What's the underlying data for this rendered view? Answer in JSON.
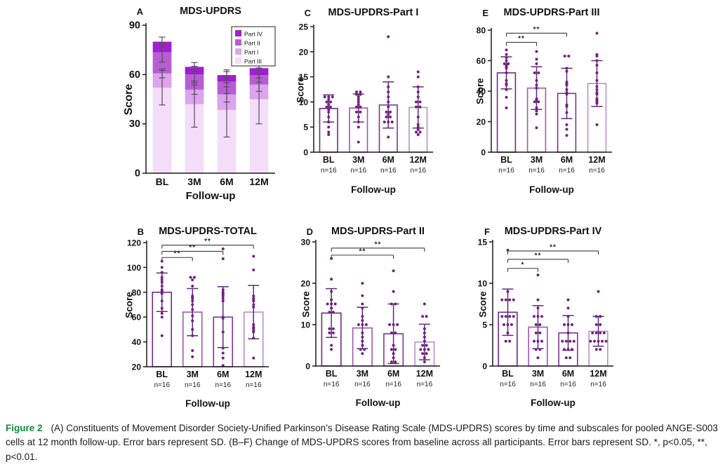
{
  "caption": {
    "label": "Figure 2",
    "label_color": "#168a43",
    "text": "(A) Constituents of Movement Disorder Society-Unified Parkinson’s Disease Rating Scale (MDS-UPDRS) scores by time and subscales for pooled ANGE-S003 cells at 12 month follow-up. Error bars represent SD. (B–F) Change of MDS-UPDRS scores from baseline across all participants. Error bars represent SD. *, p<0.05, **, p<0.01."
  },
  "palette": {
    "part4": "#a01ed0",
    "part2": "#b55fd2",
    "part1": "#dba4ec",
    "part3": "#f3ddf8",
    "bar_outline": [
      "#6e2a84",
      "#9e58b0",
      "#7d3598",
      "#bb8fcc"
    ],
    "point": "#72217e",
    "error": "#5e2a78",
    "error_a": "#5d4a68",
    "bracket": "#3a3a3a",
    "axis": "#1a1a1a"
  },
  "chart_data": [
    {
      "id": "A",
      "type": "stacked_bar",
      "title": "MDS-UPDRS",
      "ylabel": "Score",
      "xlabel": "Follow-up",
      "categories": [
        "BL",
        "3M",
        "6M",
        "12M"
      ],
      "ylim": [
        0,
        90
      ],
      "yticks": [
        0,
        30,
        60,
        90
      ],
      "legend": [
        {
          "label": "Part IV",
          "color_key": "part4"
        },
        {
          "label": "Part II",
          "color_key": "part2"
        },
        {
          "label": "Part I",
          "color_key": "part1"
        },
        {
          "label": "Part III",
          "color_key": "part3"
        }
      ],
      "series": [
        {
          "name": "Part III",
          "color_key": "part3",
          "values": [
            52,
            42,
            38.5,
            45
          ],
          "sd": [
            10.5,
            14,
            16.5,
            15
          ]
        },
        {
          "name": "Part I",
          "color_key": "part1",
          "values": [
            8.7,
            8.8,
            9.4,
            8.9
          ],
          "sd": [
            2.7,
            2.8,
            4.6,
            4.1
          ]
        },
        {
          "name": "Part II",
          "color_key": "part2",
          "values": [
            12.8,
            9.2,
            7.8,
            5.8
          ],
          "sd": [
            5.9,
            5,
            7.2,
            4.3
          ]
        },
        {
          "name": "Part IV",
          "color_key": "part4",
          "values": [
            6.5,
            4.7,
            4,
            4.2
          ],
          "sd": [
            2.8,
            2.6,
            2.1,
            1.8
          ]
        }
      ]
    },
    {
      "id": "C",
      "type": "bar_scatter",
      "title": "MDS-UPDRS-Part I",
      "ylabel": "Score",
      "xlabel": "Follow-up",
      "categories": [
        "BL",
        "3M",
        "6M",
        "12M"
      ],
      "n_labels": [
        "n=16",
        "n=16",
        "n=16",
        "n=16"
      ],
      "ylim": [
        0,
        25
      ],
      "yticks": [
        0,
        5,
        10,
        15,
        20,
        25
      ],
      "means": [
        8.7,
        8.8,
        9.4,
        8.9
      ],
      "sd": [
        2.7,
        2.8,
        4.6,
        4.1
      ],
      "points": [
        [
          11,
          11,
          11,
          10.5,
          10,
          10,
          9.5,
          9,
          9,
          8.5,
          8,
          7,
          6,
          5,
          4,
          3.5
        ],
        [
          12,
          12,
          11.5,
          11.5,
          11,
          10.5,
          10,
          9.5,
          9,
          9,
          8,
          8,
          7,
          6,
          5,
          2
        ],
        [
          23,
          15,
          13,
          12,
          11,
          10,
          9,
          8,
          8,
          7.5,
          7,
          7,
          6,
          6,
          6,
          3
        ],
        [
          16,
          15,
          13,
          12,
          11,
          10,
          10,
          9,
          9,
          7,
          5.5,
          5,
          4.5,
          4,
          4,
          3.5
        ]
      ],
      "brackets": []
    },
    {
      "id": "E",
      "type": "bar_scatter",
      "title": "MDS-UPDRS-Part III",
      "ylabel": "Score",
      "xlabel": "Follow-up",
      "categories": [
        "BL",
        "3M",
        "6M",
        "12M"
      ],
      "n_labels": [
        "n=16",
        "n=16",
        "n=16",
        "n=16"
      ],
      "ylim": [
        0,
        80
      ],
      "yticks": [
        0,
        20,
        40,
        60,
        80
      ],
      "means": [
        52,
        42,
        38.5,
        45
      ],
      "sd": [
        10.5,
        14,
        16.5,
        15
      ],
      "points": [
        [
          67,
          64,
          62,
          60,
          58,
          58,
          57,
          56,
          55,
          52,
          47,
          45,
          44,
          41,
          36,
          29
        ],
        [
          66,
          61,
          58,
          52,
          52,
          47,
          44,
          42,
          35,
          34,
          33,
          33,
          29,
          27,
          25,
          16
        ],
        [
          63,
          63,
          55,
          53,
          46,
          45,
          44,
          41,
          39,
          38,
          31,
          30,
          26,
          18,
          15,
          11
        ],
        [
          78,
          64,
          63,
          60,
          57,
          52,
          47,
          43,
          41,
          39,
          38,
          35,
          34,
          33,
          32,
          18
        ]
      ],
      "brackets": [
        {
          "from": 0,
          "to": 1,
          "label": "**",
          "y": 72
        },
        {
          "from": 0,
          "to": 2,
          "label": "**",
          "y": 78
        }
      ]
    },
    {
      "id": "B",
      "type": "bar_scatter",
      "title": "MDS-UPDRS-TOTAL",
      "ylabel": "Score",
      "xlabel": "Follow-up",
      "categories": [
        "BL",
        "3M",
        "6M",
        "12M"
      ],
      "n_labels": [
        "n=16",
        "n=16",
        "n=16",
        "n=16"
      ],
      "ylim": [
        20,
        120
      ],
      "yticks": [
        20,
        40,
        60,
        80,
        100,
        120
      ],
      "means": [
        80,
        64,
        60,
        64
      ],
      "sd": [
        15.5,
        19,
        24.5,
        21.5
      ],
      "points": [
        [
          105,
          100,
          96,
          92,
          90,
          88,
          85,
          82,
          81,
          80,
          79,
          73,
          67,
          63,
          60,
          45
        ],
        [
          92,
          92,
          90,
          85,
          77,
          76,
          75,
          73,
          70,
          66,
          61,
          57,
          50,
          45,
          33,
          28
        ],
        [
          115,
          107,
          82,
          80,
          79,
          78,
          77,
          75,
          73,
          60,
          59,
          48,
          35,
          31,
          27,
          21
        ],
        [
          109,
          98,
          77,
          75,
          74,
          73,
          70,
          68,
          54,
          52,
          51,
          50,
          49,
          48,
          43,
          27
        ]
      ],
      "brackets": [
        {
          "from": 0,
          "to": 1,
          "label": "**",
          "y": 108
        },
        {
          "from": 0,
          "to": 2,
          "label": "**",
          "y": 113
        },
        {
          "from": 0,
          "to": 3,
          "label": "**",
          "y": 118
        }
      ]
    },
    {
      "id": "D",
      "type": "bar_scatter",
      "title": "MDS-UPDRS-Part II",
      "ylabel": "Score",
      "xlabel": "Follow-up",
      "categories": [
        "BL",
        "3M",
        "6M",
        "12M"
      ],
      "n_labels": [
        "n=16",
        "n=16",
        "n=16",
        "n=16"
      ],
      "ylim": [
        0,
        30
      ],
      "yticks": [
        0,
        10,
        20,
        30
      ],
      "means": [
        12.8,
        9.2,
        7.8,
        5.8
      ],
      "sd": [
        5.9,
        5,
        7.2,
        4.3
      ],
      "points": [
        [
          26,
          21,
          18,
          16,
          15,
          15,
          15,
          14,
          13,
          13,
          9,
          9,
          8,
          8,
          5,
          4
        ],
        [
          20,
          17,
          15,
          14,
          12,
          11,
          10,
          10,
          10,
          8,
          7,
          6,
          5,
          4,
          4,
          3
        ],
        [
          23,
          18,
          15,
          15,
          10,
          10,
          10,
          8,
          8,
          5,
          4,
          4,
          3,
          2,
          1,
          1
        ],
        [
          15,
          12,
          12,
          9,
          8,
          7,
          6,
          5,
          5,
          4,
          4,
          4,
          3,
          3,
          2,
          1
        ]
      ],
      "brackets": [
        {
          "from": 0,
          "to": 2,
          "label": "**",
          "y": 26.8
        },
        {
          "from": 0,
          "to": 3,
          "label": "**",
          "y": 28.5
        }
      ]
    },
    {
      "id": "F",
      "type": "bar_scatter",
      "title": "MDS-UPDRS-Part IV",
      "ylabel": "Score",
      "xlabel": "Follow-up",
      "categories": [
        "BL",
        "3M",
        "6M",
        "12M"
      ],
      "n_labels": [
        "n=16",
        "n=16",
        "n=16",
        "n=16"
      ],
      "ylim": [
        0,
        15
      ],
      "yticks": [
        0,
        5,
        10,
        15
      ],
      "means": [
        6.5,
        4.7,
        4,
        4.2
      ],
      "sd": [
        2.8,
        2.6,
        2.1,
        1.8
      ],
      "points": [
        [
          14,
          9,
          8,
          8,
          8,
          8,
          6,
          6,
          6,
          6,
          5,
          5,
          5,
          4,
          3,
          3
        ],
        [
          11,
          8,
          7,
          6,
          6,
          6,
          5,
          5,
          4,
          4,
          3,
          3,
          3,
          2,
          2,
          1
        ],
        [
          8,
          7,
          6,
          5,
          5,
          5,
          4,
          3,
          3,
          3,
          3,
          2,
          2,
          2,
          1,
          1
        ],
        [
          9,
          6,
          6,
          5,
          5,
          4,
          4,
          4,
          4,
          3,
          3,
          3,
          3,
          3,
          2,
          2
        ]
      ],
      "brackets": [
        {
          "from": 0,
          "to": 1,
          "label": "*",
          "y": 11.8
        },
        {
          "from": 0,
          "to": 2,
          "label": "**",
          "y": 12.9
        },
        {
          "from": 0,
          "to": 3,
          "label": "**",
          "y": 13.9
        }
      ]
    }
  ]
}
